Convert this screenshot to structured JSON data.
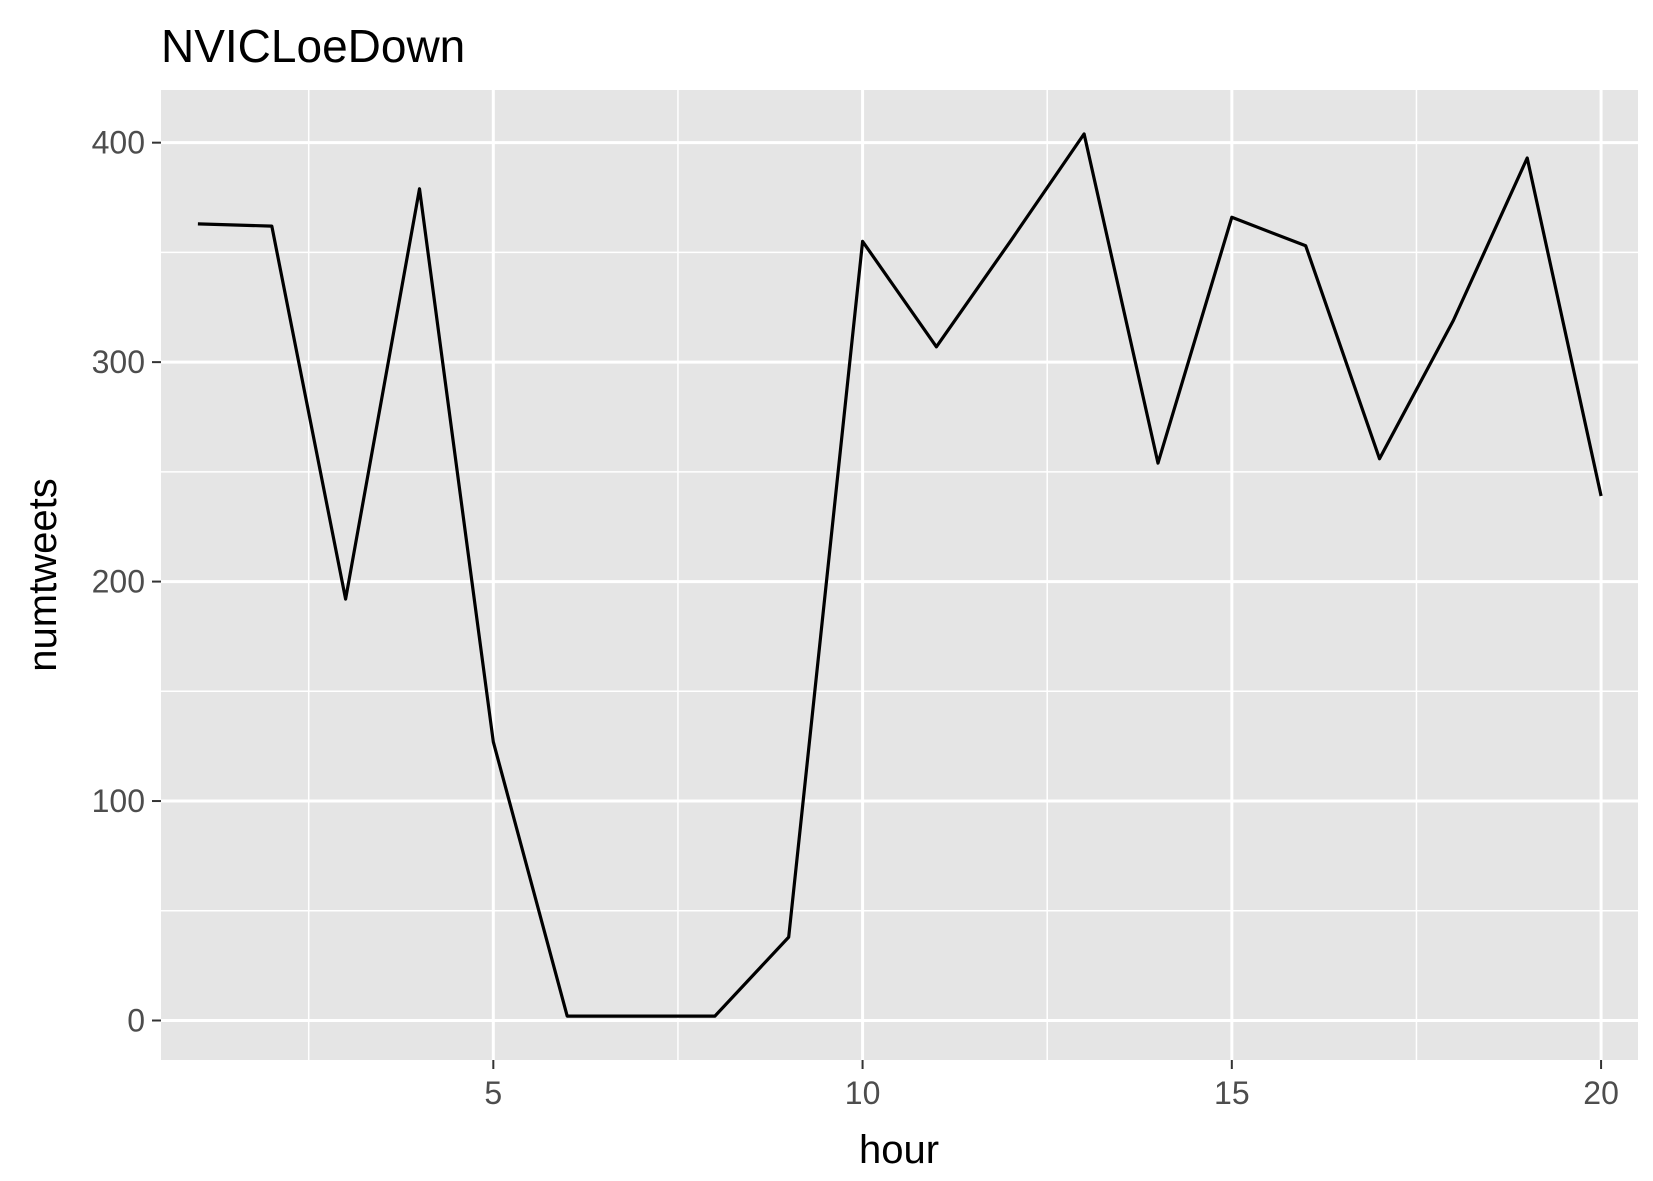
{
  "chart_data": {
    "type": "line",
    "title": "NVICLoeDown",
    "xlabel": "hour",
    "ylabel": "numtweets",
    "x": [
      1,
      2,
      3,
      4,
      5,
      6,
      7,
      8,
      9,
      10,
      11,
      12,
      13,
      14,
      15,
      16,
      17,
      18,
      19,
      20
    ],
    "series": [
      {
        "values": [
          363,
          362,
          192,
          379,
          127,
          2,
          2,
          2,
          38,
          355,
          307,
          355,
          404,
          254,
          366,
          353,
          256,
          319,
          393,
          239
        ]
      }
    ],
    "xlim": [
      0.5,
      20.5
    ],
    "ylim": [
      -18,
      424
    ],
    "x_ticks": [
      5,
      10,
      15,
      20
    ],
    "y_ticks": [
      0,
      100,
      200,
      300,
      400
    ],
    "grid": true,
    "colors": {
      "panel": "#e5e5e5",
      "grid": "#ffffff",
      "line": "#000000",
      "tick_text": "#4d4d4d"
    }
  }
}
